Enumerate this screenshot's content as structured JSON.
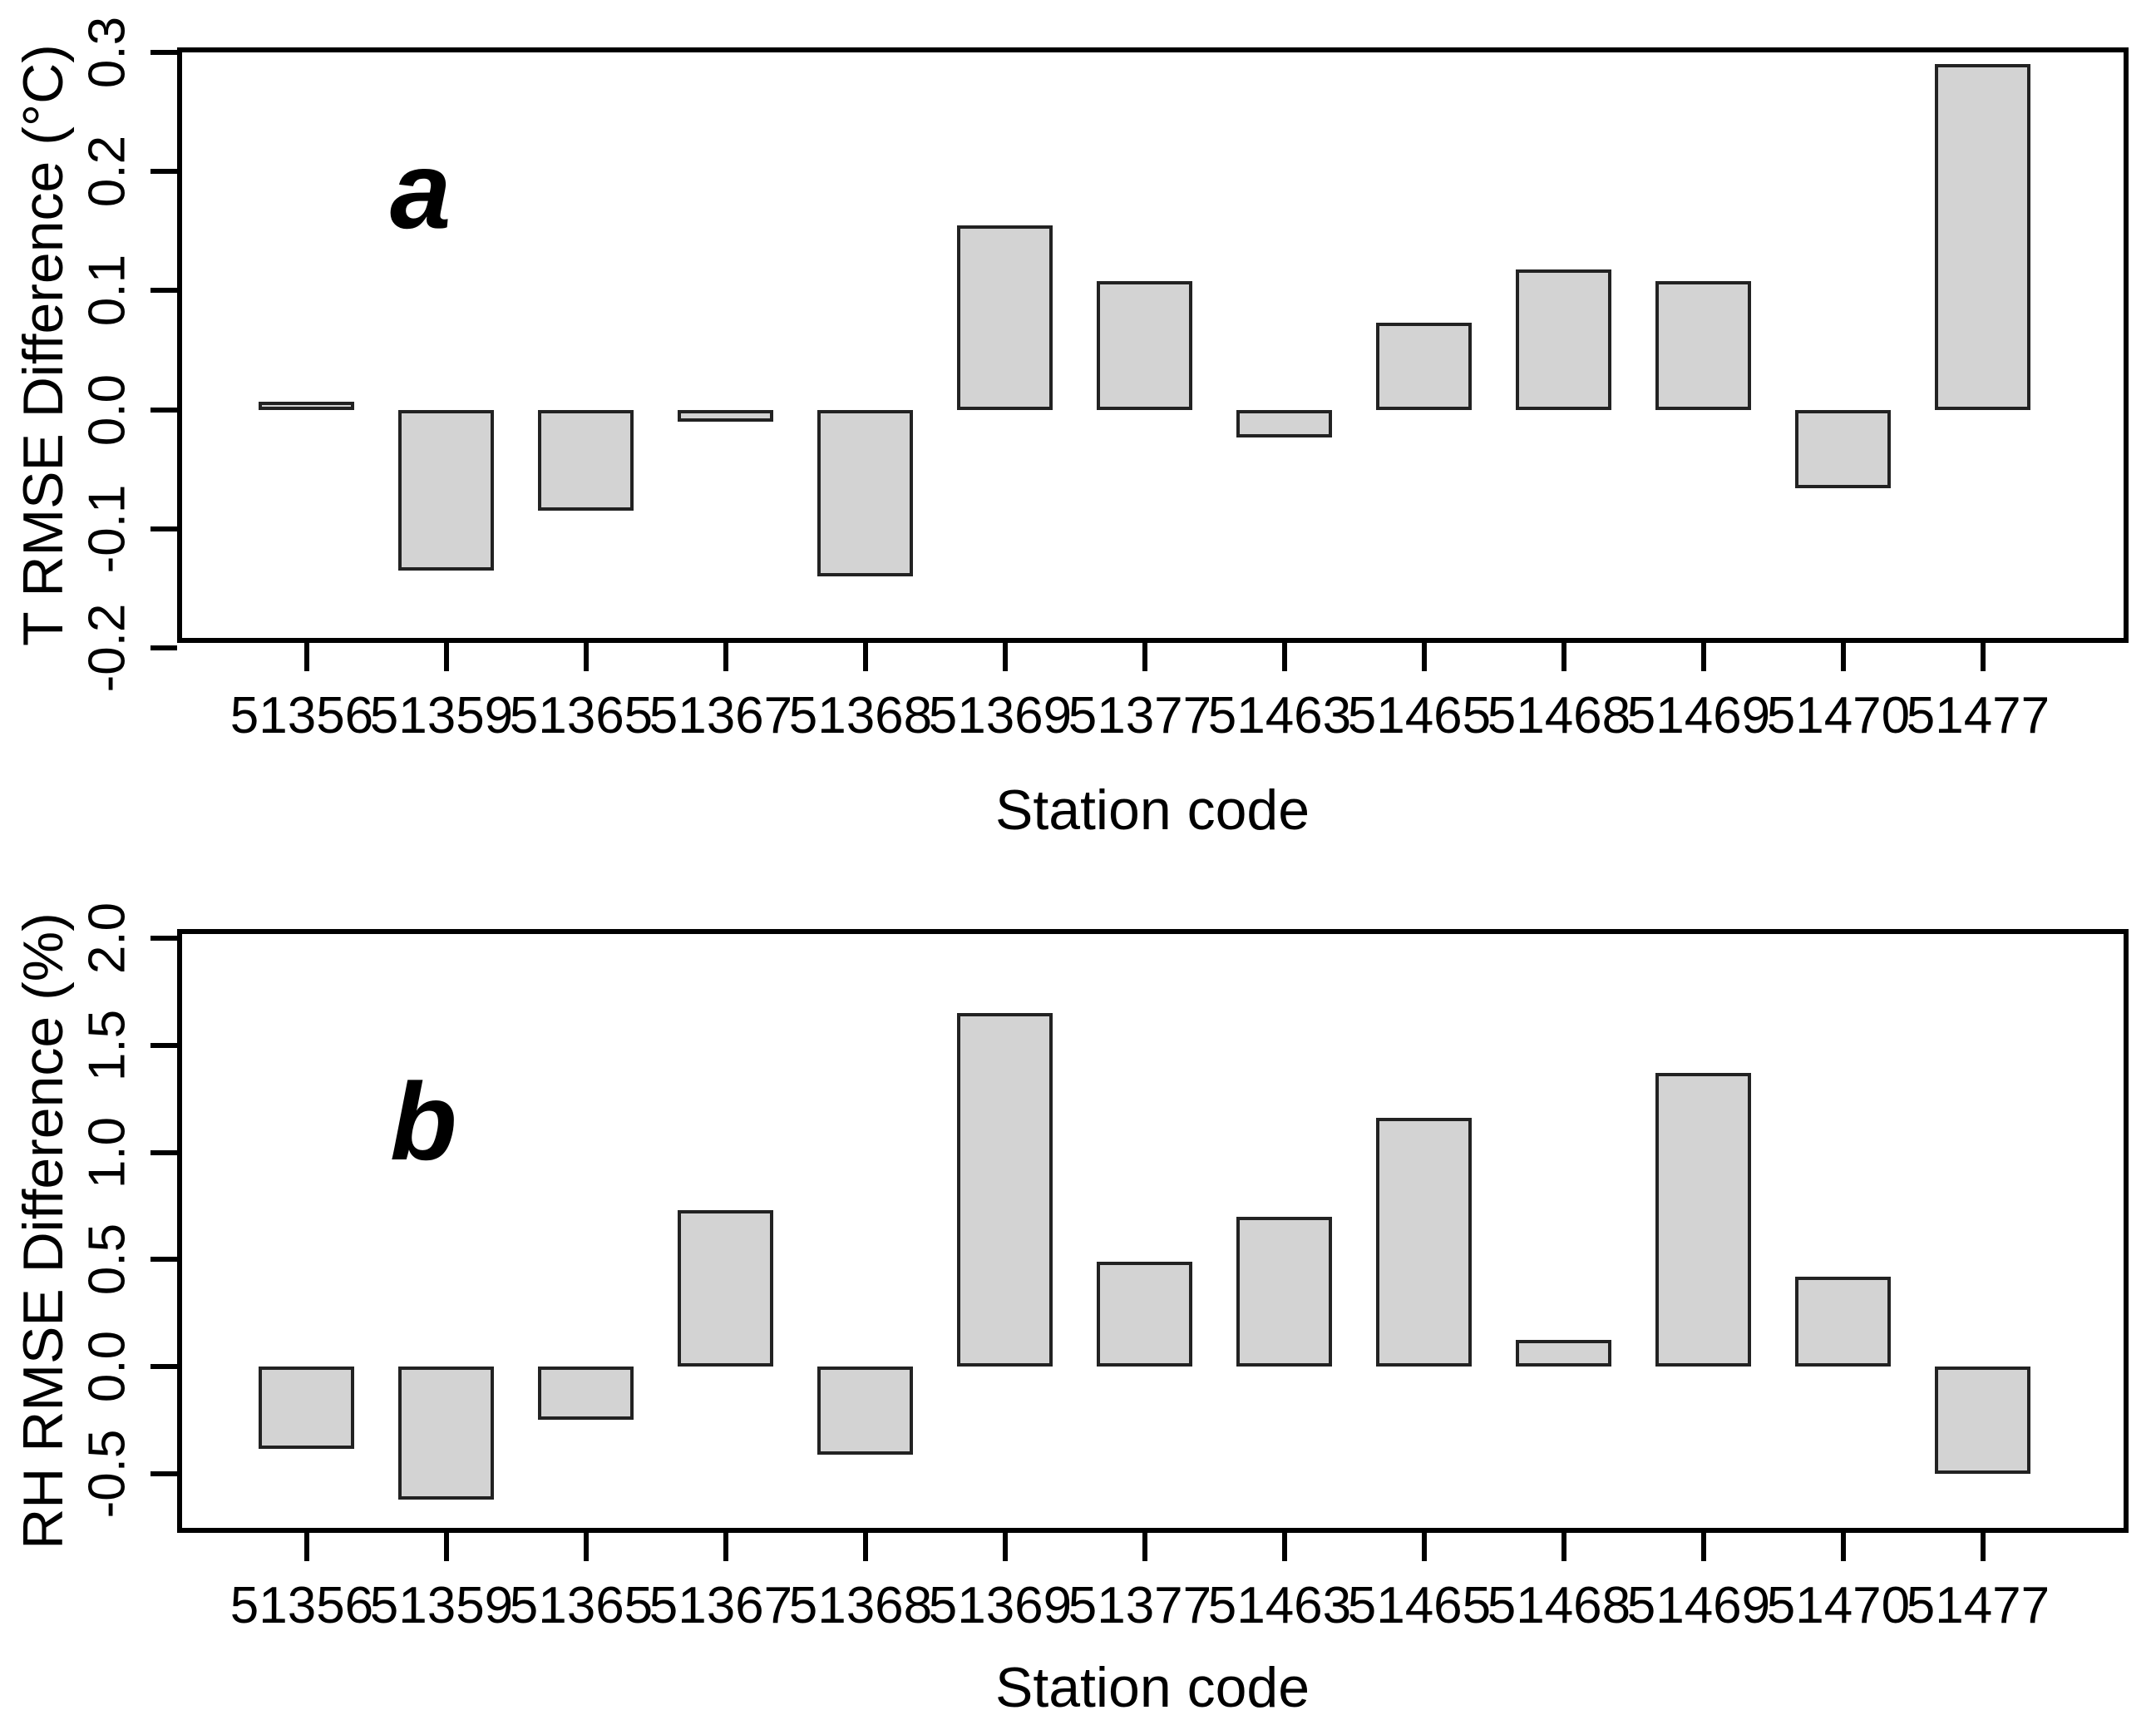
{
  "chart_data": [
    {
      "type": "bar",
      "panel_label": "a",
      "title": "",
      "categories": [
        "51356",
        "51359",
        "51365",
        "51367",
        "51368",
        "51369",
        "51377",
        "51463",
        "51465",
        "51468",
        "51469",
        "51470",
        "51477"
      ],
      "values": [
        0.007,
        -0.135,
        -0.085,
        -0.01,
        -0.14,
        0.155,
        0.108,
        -0.023,
        0.073,
        0.118,
        0.108,
        -0.066,
        0.29
      ],
      "xlabel": "Station code",
      "ylabel": "T RMSE Difference (°C)",
      "yticks": [
        0.3,
        0.2,
        0.1,
        0.0,
        -0.1,
        -0.2
      ],
      "ytick_labels": [
        "0.3",
        "0.2",
        "0.1",
        "0.0",
        "-0.1",
        "-0.2"
      ],
      "ylim": [
        -0.2,
        0.3
      ],
      "grid": false,
      "legend_position": "none",
      "bar_fill_color": "#d3d3d3",
      "bar_border_color": "#222222",
      "axis_color": "#000000"
    },
    {
      "type": "bar",
      "panel_label": "b",
      "title": "",
      "categories": [
        "51356",
        "51359",
        "51365",
        "51367",
        "51368",
        "51369",
        "51377",
        "51463",
        "51465",
        "51468",
        "51469",
        "51470",
        "51477"
      ],
      "values": [
        -0.385,
        -0.62,
        -0.25,
        0.73,
        -0.41,
        1.65,
        0.49,
        0.7,
        1.16,
        0.125,
        1.37,
        0.42,
        -0.5
      ],
      "xlabel": "Station code",
      "ylabel": "RH RMSE Difference (%)",
      "yticks": [
        2.0,
        1.5,
        1.0,
        0.5,
        0.0,
        -0.5
      ],
      "ytick_labels": [
        "2.0",
        "1.5",
        "1.0",
        "0.5",
        "0.0",
        "-0.5"
      ],
      "ylim": [
        -0.8,
        2.02
      ],
      "grid": false,
      "legend_position": "none",
      "bar_fill_color": "#d3d3d3",
      "bar_border_color": "#222222",
      "axis_color": "#000000"
    }
  ]
}
